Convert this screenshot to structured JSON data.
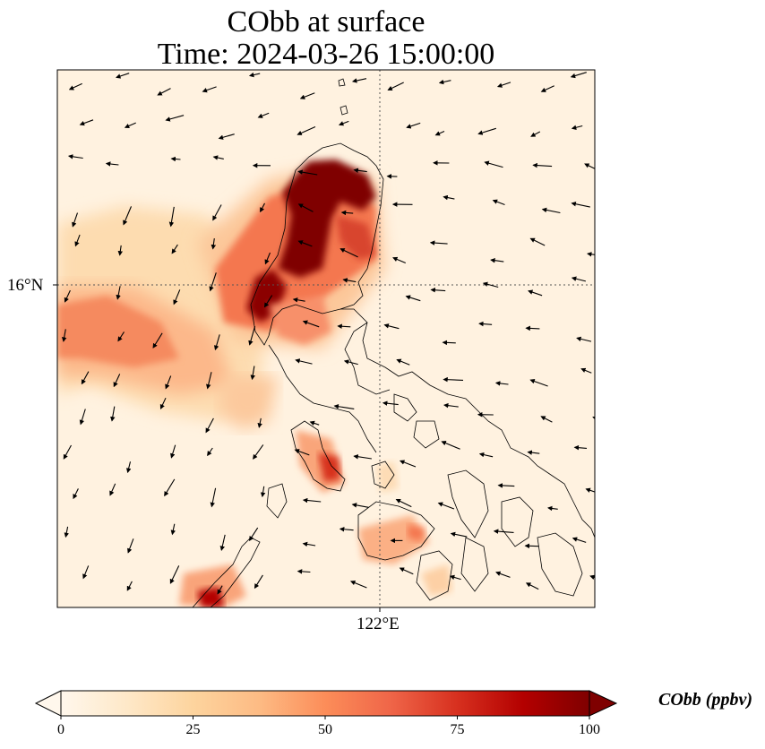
{
  "title": {
    "line1": "CObb at surface",
    "line2": "Time: 2024-03-26 15:00:00"
  },
  "axes": {
    "lat_tick": "16°N",
    "lon_tick": "122°E",
    "gridlines": "dotted",
    "colormap": "OrRd"
  },
  "colorbar": {
    "label": "CObb (ppbv)",
    "ticks": [
      "0",
      "25",
      "50",
      "75",
      "100"
    ],
    "range": [
      0,
      100
    ],
    "extend": "both",
    "colors": [
      "#fff7ec",
      "#fee8c8",
      "#fdd49e",
      "#fdbb84",
      "#fc8d59",
      "#ef6548",
      "#d7301f",
      "#b30000",
      "#7f0000"
    ]
  },
  "map_features": [
    "coastlines",
    "wind-vectors",
    "CObb-concentration-field"
  ]
}
